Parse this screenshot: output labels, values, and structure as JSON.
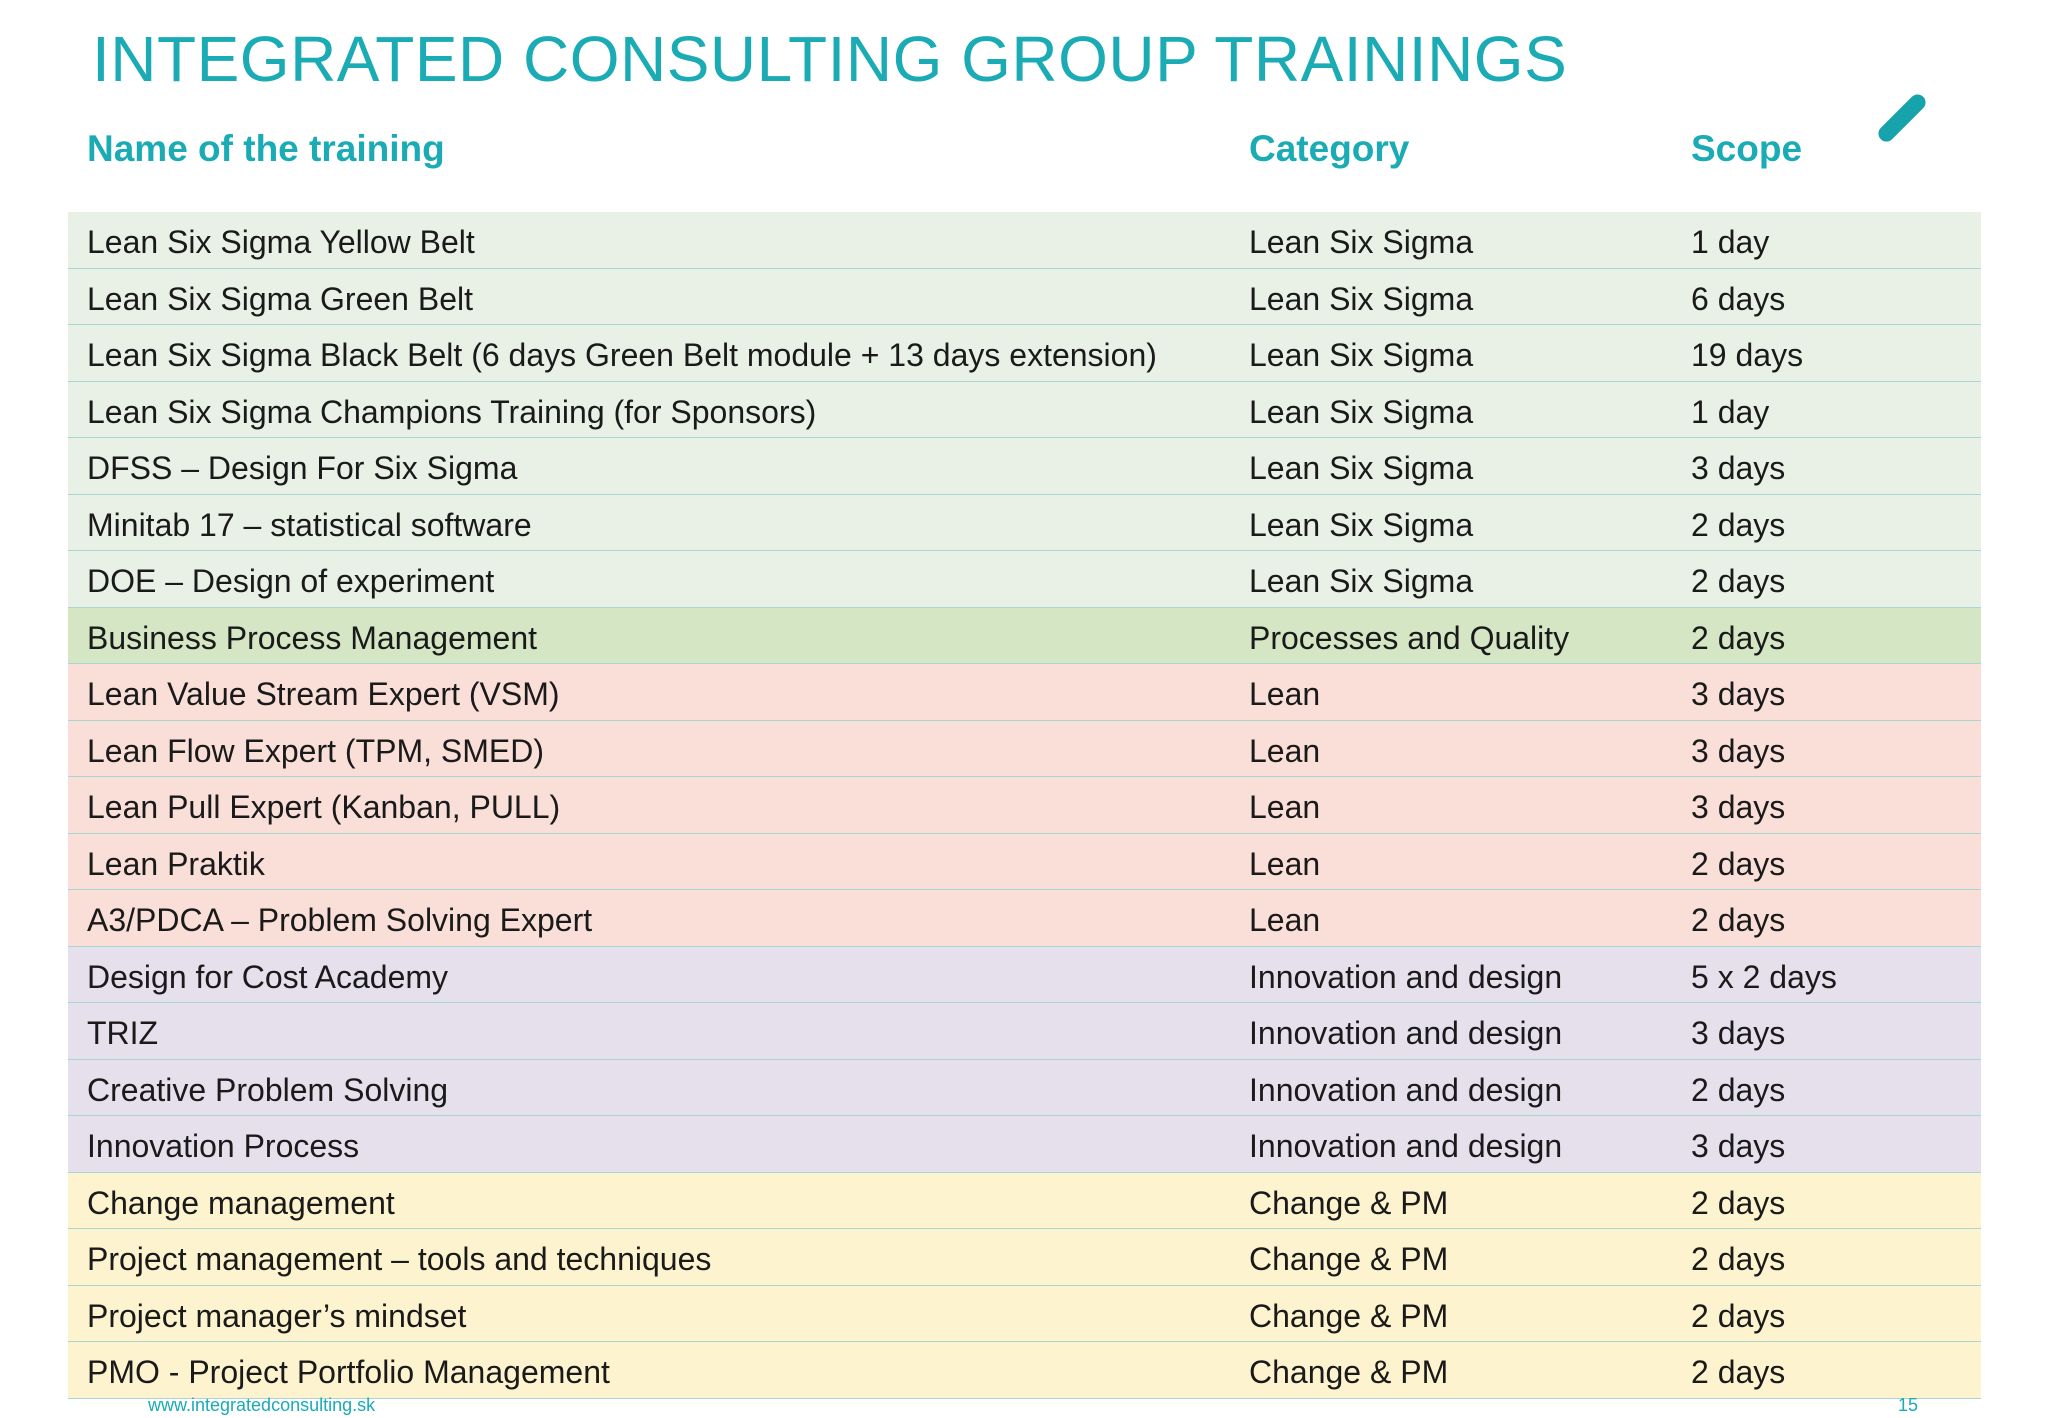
{
  "title": "INTEGRATED CONSULTING GROUP TRAININGS",
  "headers": {
    "name": "Name of the training",
    "category": "Category",
    "scope": "Scope"
  },
  "colors": {
    "accent": "#1aabb4",
    "lean_six_sigma": "#e9f1e6",
    "processes_quality": "#d4e6c4",
    "lean": "#fadfd9",
    "innovation": "#e6e0ed",
    "change_pm": "#fdf4cf"
  },
  "rows": [
    {
      "name": "Lean Six Sigma Yellow Belt",
      "category": "Lean Six Sigma",
      "scope": "1 day",
      "color": "#e9f1e6"
    },
    {
      "name": "Lean Six Sigma Green Belt",
      "category": "Lean Six Sigma",
      "scope": "6 days",
      "color": "#e9f1e6"
    },
    {
      "name": "Lean Six Sigma Black Belt (6 days Green Belt module + 13 days extension)",
      "category": "Lean Six Sigma",
      "scope": "19 days",
      "color": "#e9f1e6"
    },
    {
      "name": "Lean Six Sigma Champions Training (for Sponsors)",
      "category": "Lean Six Sigma",
      "scope": "1 day",
      "color": "#e9f1e6"
    },
    {
      "name": "DFSS – Design For Six Sigma",
      "category": "Lean Six Sigma",
      "scope": "3 days",
      "color": "#e9f1e6"
    },
    {
      "name": "Minitab 17 – statistical software",
      "category": "Lean Six Sigma",
      "scope": "2 days",
      "color": "#e9f1e6"
    },
    {
      "name": "DOE – Design of experiment",
      "category": "Lean Six Sigma",
      "scope": "2 days",
      "color": "#e9f1e6"
    },
    {
      "name": "Business Process Management",
      "category": "Processes and Quality",
      "scope": "2 days",
      "color": "#d4e6c4"
    },
    {
      "name": "Lean Value Stream Expert (VSM)",
      "category": "Lean",
      "scope": "3 days",
      "color": "#fadfd9"
    },
    {
      "name": "Lean Flow Expert  (TPM, SMED)",
      "category": "Lean",
      "scope": "3 days",
      "color": "#fadfd9"
    },
    {
      "name": "Lean Pull Expert (Kanban, PULL)",
      "category": "Lean",
      "scope": "3 days",
      "color": "#fadfd9"
    },
    {
      "name": "Lean Praktik",
      "category": "Lean",
      "scope": "2 days",
      "color": "#fadfd9"
    },
    {
      "name": "A3/PDCA – Problem Solving Expert",
      "category": "Lean",
      "scope": "2 days",
      "color": "#fadfd9"
    },
    {
      "name": "Design for Cost Academy",
      "category": "Innovation and design",
      "scope": "5 x 2 days",
      "color": "#e6e0ed"
    },
    {
      "name": "TRIZ",
      "category": "Innovation and design",
      "scope": "3 days",
      "color": "#e6e0ed"
    },
    {
      "name": "Creative Problem Solving",
      "category": "Innovation and design",
      "scope": "2 days",
      "color": "#e6e0ed"
    },
    {
      "name": "Innovation Process",
      "category": "Innovation and design",
      "scope": "3 days",
      "color": "#e6e0ed"
    },
    {
      "name": "Change management",
      "category": "Change & PM",
      "scope": "2 days",
      "color": "#fdf4cf"
    },
    {
      "name": "Project management – tools and techniques",
      "category": "Change & PM",
      "scope": "2 days",
      "color": "#fdf4cf"
    },
    {
      "name": "Project manager’s mindset",
      "category": "Change & PM",
      "scope": "2 days",
      "color": "#fdf4cf"
    },
    {
      "name": "PMO - Project Portfolio Management",
      "category": "Change & PM",
      "scope": "2 days",
      "color": "#fdf4cf"
    }
  ],
  "footer": {
    "website": "www.integratedconsulting.sk",
    "page_number": "15"
  }
}
